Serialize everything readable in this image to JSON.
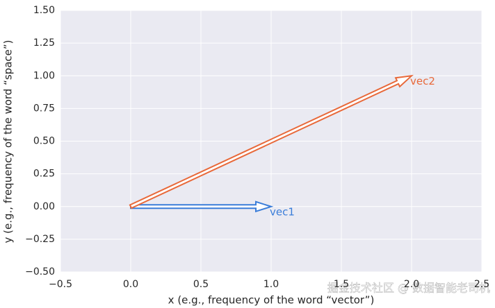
{
  "chart_data": {
    "type": "quiver",
    "xlabel": "x (e.g., frequency of the word “vector”)",
    "ylabel": "y (e.g., frequency of the word “space”)",
    "watermark": "掘金技术社区 @ 数据智能老司机",
    "xlim": [
      -0.5,
      2.5
    ],
    "xticks": [
      {
        "value": -0.5,
        "label": "−0.5"
      },
      {
        "value": 0,
        "label": "0.0"
      },
      {
        "value": 0.5,
        "label": "0.5"
      },
      {
        "value": 1,
        "label": "1.0"
      },
      {
        "value": 1.5,
        "label": "1.5"
      },
      {
        "value": 2,
        "label": "2.0"
      },
      {
        "value": 2.5,
        "label": "2.5"
      }
    ],
    "ylim": [
      -0.5,
      1.5
    ],
    "yticks": [
      {
        "value": -0.5,
        "label": "−0.50"
      },
      {
        "value": -0.25,
        "label": "−0.25"
      },
      {
        "value": 0,
        "label": "0.00"
      },
      {
        "value": 0.25,
        "label": "0.25"
      },
      {
        "value": 0.5,
        "label": "0.50"
      },
      {
        "value": 0.75,
        "label": "0.75"
      },
      {
        "value": 1,
        "label": "1.00"
      },
      {
        "value": 1.25,
        "label": "1.25"
      },
      {
        "value": 1.5,
        "label": "1.50"
      }
    ],
    "grid": true,
    "series": [
      {
        "name": "vec1",
        "color": "#3a7dd9",
        "x0": 0,
        "y0": 0,
        "dx": 1,
        "dy": 0
      },
      {
        "name": "vec2",
        "color": "#e8693a",
        "x0": 0,
        "y0": 0,
        "dx": 2,
        "dy": 1
      }
    ]
  }
}
